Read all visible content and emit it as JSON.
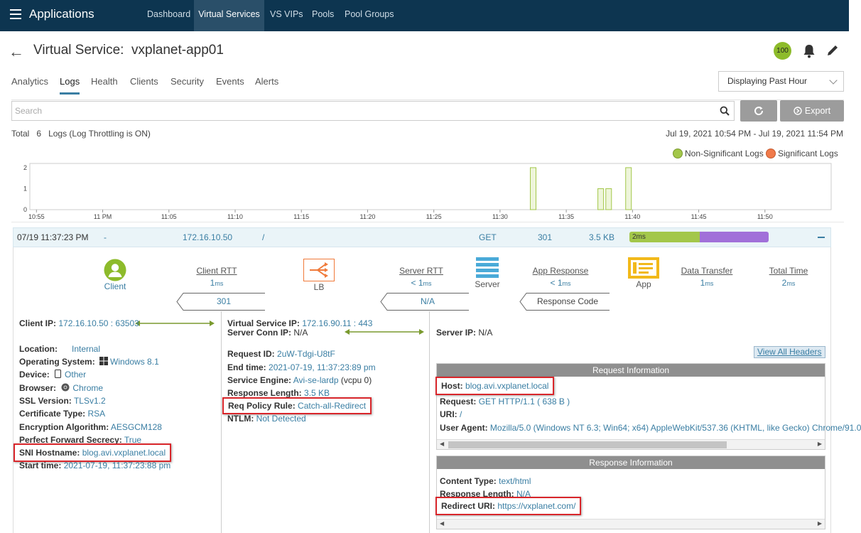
{
  "app": {
    "name": "Applications"
  },
  "topnav": {
    "tabs": [
      {
        "label": "Dashboard",
        "active": false
      },
      {
        "label": "Virtual Services",
        "active": true
      },
      {
        "label": "VS VIPs",
        "active": false
      },
      {
        "label": "Pools",
        "active": false
      },
      {
        "label": "Pool Groups",
        "active": false
      }
    ]
  },
  "header": {
    "title_prefix": "Virtual Service:",
    "title_name": "vxplanet-app01",
    "health_score": "100"
  },
  "tabs": [
    "Analytics",
    "Logs",
    "Health",
    "Clients",
    "Security",
    "Events",
    "Alerts"
  ],
  "active_tab": "Logs",
  "time_range_select": {
    "value": "Displaying Past Hour"
  },
  "search": {
    "placeholder": "Search"
  },
  "buttons": {
    "export": "Export"
  },
  "summary": {
    "total_label": "Total",
    "count": "6",
    "logs_label": "Logs (Log Throttling is ON)",
    "range": "Jul 19, 2021 10:54 PM - Jul 19, 2021 11:54 PM"
  },
  "legend": {
    "non_significant": "Non-Significant Logs",
    "significant": "Significant Logs"
  },
  "colors": {
    "non_significant": "#a3c74a",
    "significant": "#f07a4a",
    "nav_bg": "#0d3550",
    "accent": "#3a7ea3"
  },
  "chart_data": {
    "type": "bar",
    "x_ticks": [
      "10:55",
      "11 PM",
      "11:05",
      "11:10",
      "11:15",
      "11:20",
      "11:25",
      "11:30",
      "11:35",
      "11:40",
      "11:45",
      "11:50"
    ],
    "y_ticks": [
      "0",
      "1",
      "2"
    ],
    "ylim": [
      0,
      2.2
    ],
    "xlim_minutes": [
      54.5,
      115
    ],
    "bars": [
      {
        "t": 92.5,
        "value": 2
      },
      {
        "t": 97.6,
        "value": 1
      },
      {
        "t": 98.2,
        "value": 1
      },
      {
        "t": 99.7,
        "value": 2
      }
    ],
    "grid": false
  },
  "log_row": {
    "time": "07/19 11:37:23 PM",
    "dash": "-",
    "client_ip": "172.16.10.50",
    "uri": "/",
    "method": "GET",
    "status": "301",
    "size": "3.5 KB",
    "duration": "2ms"
  },
  "flow": {
    "client": "Client",
    "lb": "LB",
    "server": "Server",
    "app": "App",
    "client_rtt": {
      "label": "Client RTT",
      "value": "1",
      "unit": "ms"
    },
    "server_rtt": {
      "label": "Server RTT",
      "value": "< 1",
      "unit": "ms"
    },
    "app_response": {
      "label": "App Response",
      "value": "< 1",
      "unit": "ms"
    },
    "data_transfer": {
      "label": "Data Transfer",
      "value": "1",
      "unit": "ms"
    },
    "total_time": {
      "label": "Total Time",
      "value": "2",
      "unit": "ms"
    },
    "chip_client": "301",
    "chip_server": "N/A",
    "chip_response": "Response Code"
  },
  "client_details": {
    "client_ip": {
      "label": "Client IP:",
      "value": "172.16.10.50 : 63503"
    },
    "location": {
      "label": "Location:",
      "value": "Internal"
    },
    "os": {
      "label": "Operating System:",
      "value": "Windows 8.1"
    },
    "device": {
      "label": "Device:",
      "value": "Other"
    },
    "browser": {
      "label": "Browser:",
      "value": "Chrome"
    },
    "ssl": {
      "label": "SSL Version:",
      "value": "TLSv1.2"
    },
    "cert": {
      "label": "Certificate Type:",
      "value": "RSA"
    },
    "enc": {
      "label": "Encryption Algorithm:",
      "value": "AESGCM128"
    },
    "pfs": {
      "label": "Perfect Forward Secrecy:",
      "value": "True"
    },
    "sni": {
      "label": "SNI Hostname:",
      "value": "blog.avi.vxplanet.local"
    },
    "start": {
      "label": "Start time:",
      "value": "2021-07-19, 11:37:23:88 pm"
    }
  },
  "vs_details": {
    "vs_ip": {
      "label": "Virtual Service IP:",
      "value": "172.16.90.11 : 443"
    },
    "server_conn_ip": {
      "label": "Server Conn IP:",
      "value": "N/A"
    },
    "request_id": {
      "label": "Request ID:",
      "value": "2uW-Tdgi-U8tF"
    },
    "end_time": {
      "label": "End time:",
      "value": "2021-07-19, 11:37:23:89 pm"
    },
    "se": {
      "label": "Service Engine:",
      "value": "Avi-se-lardp",
      "extra": "(vcpu 0)"
    },
    "resp_len": {
      "label": "Response Length:",
      "value": "3.5 KB"
    },
    "policy": {
      "label": "Req Policy Rule:",
      "value": "Catch-all-Redirect"
    },
    "ntlm": {
      "label": "NTLM:",
      "value": "Not Detected"
    }
  },
  "server_details": {
    "server_ip": {
      "label": "Server IP:",
      "value": "N/A"
    },
    "view_headers": "View All Headers",
    "request_info": {
      "title": "Request Information",
      "host": {
        "label": "Host:",
        "value": "blog.avi.vxplanet.local"
      },
      "request": {
        "label": "Request:",
        "value": "GET HTTP/1.1 ( 638 B )"
      },
      "uri": {
        "label": "URI:",
        "value": "/"
      },
      "user_agent": {
        "label": "User Agent:",
        "value": "Mozilla/5.0 (Windows NT 6.3; Win64; x64) AppleWebKit/537.36 (KHTML, like Gecko) Chrome/91.0"
      }
    },
    "response_info": {
      "title": "Response Information",
      "content_type": {
        "label": "Content Type:",
        "value": "text/html"
      },
      "resp_len": {
        "label": "Response Length:",
        "value": "N/A"
      },
      "redirect": {
        "label": "Redirect URI:",
        "value": "https://vxplanet.com/"
      }
    }
  }
}
